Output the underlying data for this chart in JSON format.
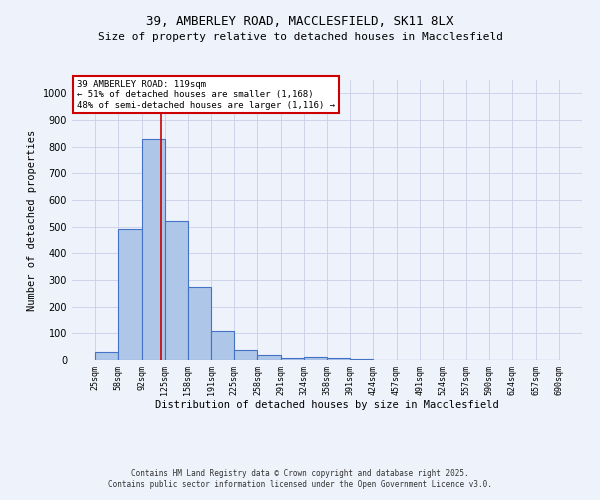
{
  "title_line1": "39, AMBERLEY ROAD, MACCLESFIELD, SK11 8LX",
  "title_line2": "Size of property relative to detached houses in Macclesfield",
  "xlabel": "Distribution of detached houses by size in Macclesfield",
  "ylabel": "Number of detached properties",
  "bar_values": [
    30,
    493,
    830,
    520,
    275,
    110,
    38,
    20,
    8,
    10,
    8,
    2,
    0,
    0,
    0,
    0,
    0,
    0,
    0,
    0
  ],
  "categories": [
    "25sqm",
    "58sqm",
    "92sqm",
    "125sqm",
    "158sqm",
    "191sqm",
    "225sqm",
    "258sqm",
    "291sqm",
    "324sqm",
    "358sqm",
    "391sqm",
    "424sqm",
    "457sqm",
    "491sqm",
    "524sqm",
    "557sqm",
    "590sqm",
    "624sqm",
    "657sqm",
    "690sqm"
  ],
  "bar_color": "#aec6e8",
  "bar_edge_color": "#4472c4",
  "bar_edge_width": 0.8,
  "background_color": "#eef2fb",
  "grid_color": "#c8d0e8",
  "annotation_text": "39 AMBERLEY ROAD: 119sqm\n← 51% of detached houses are smaller (1,168)\n48% of semi-detached houses are larger (1,116) →",
  "annotation_box_color": "#ffffff",
  "annotation_box_edge": "#cc0000",
  "annotation_text_size": 6.5,
  "ylim": [
    0,
    1050
  ],
  "yticks": [
    0,
    100,
    200,
    300,
    400,
    500,
    600,
    700,
    800,
    900,
    1000
  ],
  "footer_line1": "Contains HM Land Registry data © Crown copyright and database right 2025.",
  "footer_line2": "Contains public sector information licensed under the Open Government Licence v3.0.",
  "title_fontsize": 9,
  "subtitle_fontsize": 8,
  "ylabel_fontsize": 7.5,
  "xlabel_fontsize": 7.5,
  "ytick_fontsize": 7,
  "xtick_fontsize": 6
}
